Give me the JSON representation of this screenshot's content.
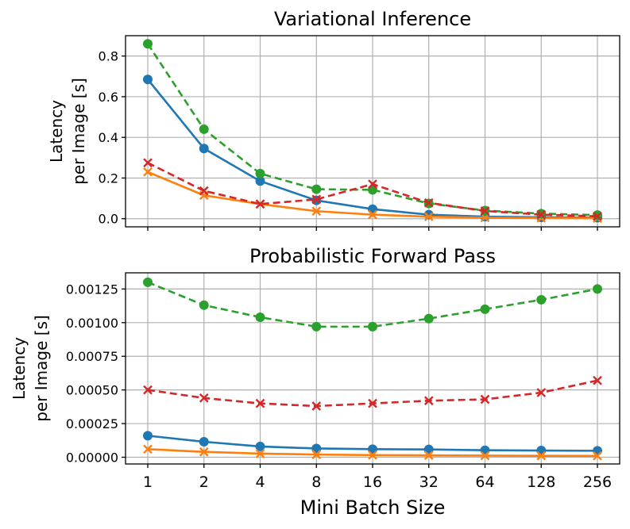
{
  "chart_data": [
    {
      "type": "line",
      "title": "Variational Inference",
      "xlabel": "",
      "ylabel_lines": [
        "Latency",
        "per Image [s]"
      ],
      "categories": [
        "1",
        "2",
        "4",
        "8",
        "16",
        "32",
        "64",
        "128",
        "256"
      ],
      "ylim": [
        -0.04,
        0.9
      ],
      "yticks": [
        0.0,
        0.2,
        0.4,
        0.6,
        0.8
      ],
      "ytick_labels": [
        "0.0",
        "0.2",
        "0.4",
        "0.6",
        "0.8"
      ],
      "show_xtick_labels": false,
      "grid": true,
      "series": [
        {
          "name": "blue-solid-circle",
          "color": "#1f77b4",
          "dash": "solid",
          "marker": "circle",
          "values": [
            0.685,
            0.345,
            0.185,
            0.09,
            0.047,
            0.02,
            0.01,
            0.007,
            0.005
          ]
        },
        {
          "name": "orange-solid-x",
          "color": "#ff7f0e",
          "dash": "solid",
          "marker": "x",
          "values": [
            0.23,
            0.115,
            0.072,
            0.037,
            0.02,
            0.01,
            0.005,
            0.003,
            0.002
          ]
        },
        {
          "name": "green-dashed-circle",
          "color": "#2ca02c",
          "dash": "dashed",
          "marker": "circle",
          "values": [
            0.86,
            0.44,
            0.222,
            0.145,
            0.142,
            0.075,
            0.04,
            0.025,
            0.018
          ]
        },
        {
          "name": "red-dashed-x",
          "color": "#d62728",
          "dash": "dashed",
          "marker": "x",
          "values": [
            0.275,
            0.137,
            0.072,
            0.095,
            0.17,
            0.078,
            0.038,
            0.02,
            0.012
          ]
        }
      ]
    },
    {
      "type": "line",
      "title": "Probabilistic Forward Pass",
      "xlabel": "Mini Batch Size",
      "ylabel_lines": [
        "Latency",
        "per Image [s]"
      ],
      "categories": [
        "1",
        "2",
        "4",
        "8",
        "16",
        "32",
        "64",
        "128",
        "256"
      ],
      "ylim": [
        -5e-05,
        0.00137
      ],
      "yticks": [
        0.0,
        0.00025,
        0.0005,
        0.00075,
        0.001,
        0.00125
      ],
      "ytick_labels": [
        "0.00000",
        "0.00025",
        "0.00050",
        "0.00075",
        "0.00100",
        "0.00125"
      ],
      "show_xtick_labels": true,
      "grid": true,
      "series": [
        {
          "name": "blue-solid-circle",
          "color": "#1f77b4",
          "dash": "solid",
          "marker": "circle",
          "values": [
            0.00016,
            0.000115,
            8e-05,
            6.5e-05,
            6e-05,
            5.8e-05,
            5.2e-05,
            5e-05,
            4.8e-05
          ]
        },
        {
          "name": "orange-solid-x",
          "color": "#ff7f0e",
          "dash": "solid",
          "marker": "x",
          "values": [
            6e-05,
            4e-05,
            2.7e-05,
            2e-05,
            1.6e-05,
            1.4e-05,
            1.2e-05,
            1.1e-05,
            1e-05
          ]
        },
        {
          "name": "green-dashed-circle",
          "color": "#2ca02c",
          "dash": "dashed",
          "marker": "circle",
          "values": [
            0.0013,
            0.00113,
            0.00104,
            0.00097,
            0.00097,
            0.00103,
            0.0011,
            0.00117,
            0.00125
          ]
        },
        {
          "name": "red-dashed-x",
          "color": "#d62728",
          "dash": "dashed",
          "marker": "x",
          "values": [
            0.0005,
            0.00044,
            0.0004,
            0.00038,
            0.0004,
            0.00042,
            0.00043,
            0.00048,
            0.00057
          ]
        }
      ]
    }
  ]
}
